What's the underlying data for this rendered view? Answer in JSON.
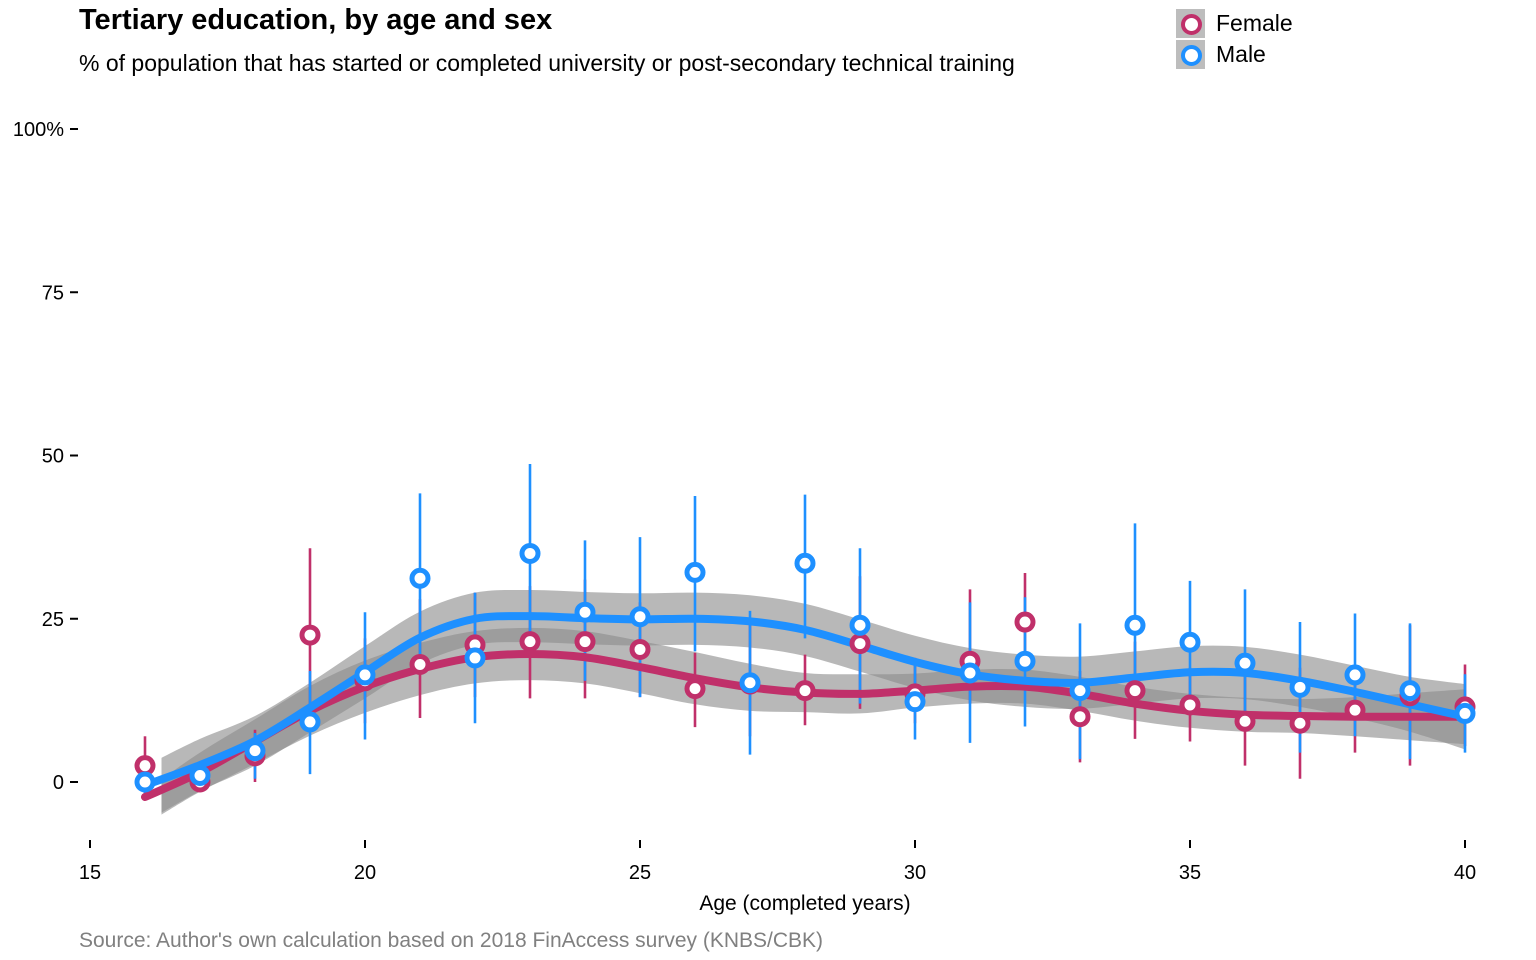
{
  "chart_data": {
    "type": "line",
    "title": "Tertiary education, by age and sex",
    "subtitle": "% of population that has started or completed university or post-secondary technical training",
    "caption": "Source: Author's own calculation based on 2018 FinAccess survey (KNBS/CBK)",
    "xlabel": "Age (completed years)",
    "ylabel": "",
    "xlim": [
      15,
      40
    ],
    "ylim": [
      -10,
      102
    ],
    "x_ticks": [
      15,
      20,
      25,
      30,
      35,
      40
    ],
    "x_tick_labels": [
      "15",
      "20",
      "25",
      "30",
      "35",
      "40"
    ],
    "y_ticks": [
      0,
      25,
      50,
      75,
      100
    ],
    "y_tick_labels": [
      "0",
      "25",
      "50",
      "75",
      "100%"
    ],
    "grid": false,
    "legend_position": "top-right",
    "series": [
      {
        "name": "Female",
        "color": "#c0306a",
        "x": [
          16,
          17,
          18,
          19,
          20,
          21,
          22,
          23,
          24,
          25,
          26,
          27,
          28,
          29,
          30,
          31,
          32,
          33,
          34,
          35,
          36,
          37,
          38,
          39,
          40
        ],
        "y": [
          2.5,
          0,
          4,
          22.5,
          15.5,
          18,
          21,
          21.5,
          21.5,
          20.3,
          14.3,
          15,
          14,
          21.2,
          13.5,
          18.5,
          24.5,
          10,
          14,
          11.8,
          9.3,
          9,
          11,
          13.2,
          11.5
        ],
        "ci_low": [
          -2,
          null,
          0,
          9,
          9,
          9.8,
          13,
          12.8,
          12.8,
          13,
          8.4,
          7,
          8.7,
          11.2,
          9,
          12,
          17,
          3,
          6.6,
          6.2,
          2.5,
          0.5,
          4.5,
          2.5,
          5.5
        ],
        "ci_high": [
          7,
          null,
          8,
          35.8,
          22,
          28,
          29,
          30,
          31,
          27.5,
          19.8,
          24,
          19.5,
          31.5,
          19,
          29.5,
          32,
          17,
          21.5,
          17.5,
          16.5,
          17.5,
          17.5,
          24,
          18
        ],
        "smooth": [
          -2.3,
          1.5,
          6.2,
          10.9,
          14.6,
          17.3,
          19.1,
          19.6,
          19.1,
          17.6,
          15.9,
          14.5,
          13.7,
          13.5,
          14.0,
          14.6,
          14.6,
          13.5,
          12.0,
          10.9,
          10.3,
          10.1,
          10.0,
          10.0,
          10.0
        ],
        "band": [
          2.7,
          3.0,
          3.4,
          3.8,
          4.0,
          4.0,
          4.0,
          4.0,
          4.0,
          4.0,
          4.0,
          3.6,
          3.0,
          3.0,
          2.6,
          2.6,
          2.6,
          2.6,
          2.6,
          2.6,
          2.6,
          2.6,
          3.0,
          3.6,
          4.2
        ]
      },
      {
        "name": "Male",
        "color": "#1e90ff",
        "x": [
          16,
          17,
          18,
          19,
          20,
          21,
          22,
          23,
          24,
          25,
          26,
          27,
          28,
          29,
          30,
          31,
          32,
          33,
          34,
          35,
          36,
          37,
          38,
          39,
          40
        ],
        "y": [
          0,
          1,
          4.8,
          9.2,
          16.4,
          31.2,
          19,
          35,
          26,
          25.3,
          32.1,
          15.2,
          33.5,
          24,
          12.3,
          16.7,
          18.5,
          14,
          24,
          21.4,
          18.2,
          14.5,
          16.4,
          14,
          10.5
        ],
        "ci_low": [
          -2,
          -1,
          0.5,
          1.2,
          6.5,
          18,
          9,
          21,
          15.5,
          13,
          20,
          4.2,
          22,
          12,
          6.5,
          6,
          8.5,
          3.5,
          12.5,
          11.8,
          8.7,
          4.5,
          7,
          3.5,
          4.5
        ],
        "ci_high": [
          2,
          3,
          7.5,
          17,
          26,
          44.2,
          29,
          48.7,
          37,
          37.5,
          43.8,
          26.2,
          44,
          35.8,
          18.5,
          27.5,
          28.3,
          24.3,
          39.6,
          30.8,
          29.5,
          24.5,
          25.8,
          24.3,
          16.5
        ],
        "smooth": [
          -0.5,
          2.6,
          6.3,
          11.4,
          16.8,
          22.1,
          25.0,
          25.4,
          25.1,
          24.9,
          25.0,
          24.6,
          23.3,
          20.9,
          18.4,
          16.5,
          15.5,
          15.2,
          16.0,
          16.8,
          16.7,
          15.5,
          13.8,
          11.9,
          10.0
        ],
        "band": [
          4.2,
          4.0,
          3.8,
          3.8,
          4.0,
          4.0,
          4.0,
          4.0,
          4.0,
          4.0,
          4.0,
          4.0,
          4.0,
          4.0,
          4.0,
          4.0,
          4.0,
          4.0,
          4.0,
          4.0,
          4.0,
          4.0,
          4.0,
          4.2,
          5.0
        ]
      }
    ]
  }
}
